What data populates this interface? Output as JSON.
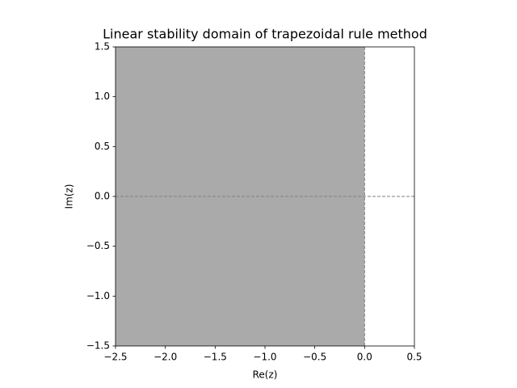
{
  "chart_data": {
    "type": "region",
    "title": "Linear stability domain of trapezoidal rule method",
    "x_label": "Re(z)",
    "y_label": "Im(z)",
    "region_x": [
      -2.5,
      0
    ],
    "color": "#aaaaaa",
    "hlines": [
      0
    ],
    "vlines": [
      0
    ],
    "line_color": "#808080",
    "line_style": "dashed",
    "xlim": [
      -2.5,
      0.5
    ],
    "xticks": [
      {
        "value": -2.5,
        "label": "−2.5"
      },
      {
        "value": -2.0,
        "label": "−2.0"
      },
      {
        "value": -1.5,
        "label": "−1.5"
      },
      {
        "value": -1.0,
        "label": "−1.0"
      },
      {
        "value": -0.5,
        "label": "−0.5"
      },
      {
        "value": 0,
        "label": "0.0"
      },
      0.5
    ],
    "ylim": [
      -1.5,
      1.5
    ],
    "yticks": [
      {
        "value": -1.5,
        "label": "−1.5"
      },
      {
        "value": -1.0,
        "label": "−1.0"
      },
      {
        "value": -0.5,
        "label": "−0.5"
      },
      {
        "value": 0,
        "label": "0.0"
      },
      0.5,
      {
        "value": 1.0,
        "label": "1.0"
      },
      1.5
    ]
  }
}
